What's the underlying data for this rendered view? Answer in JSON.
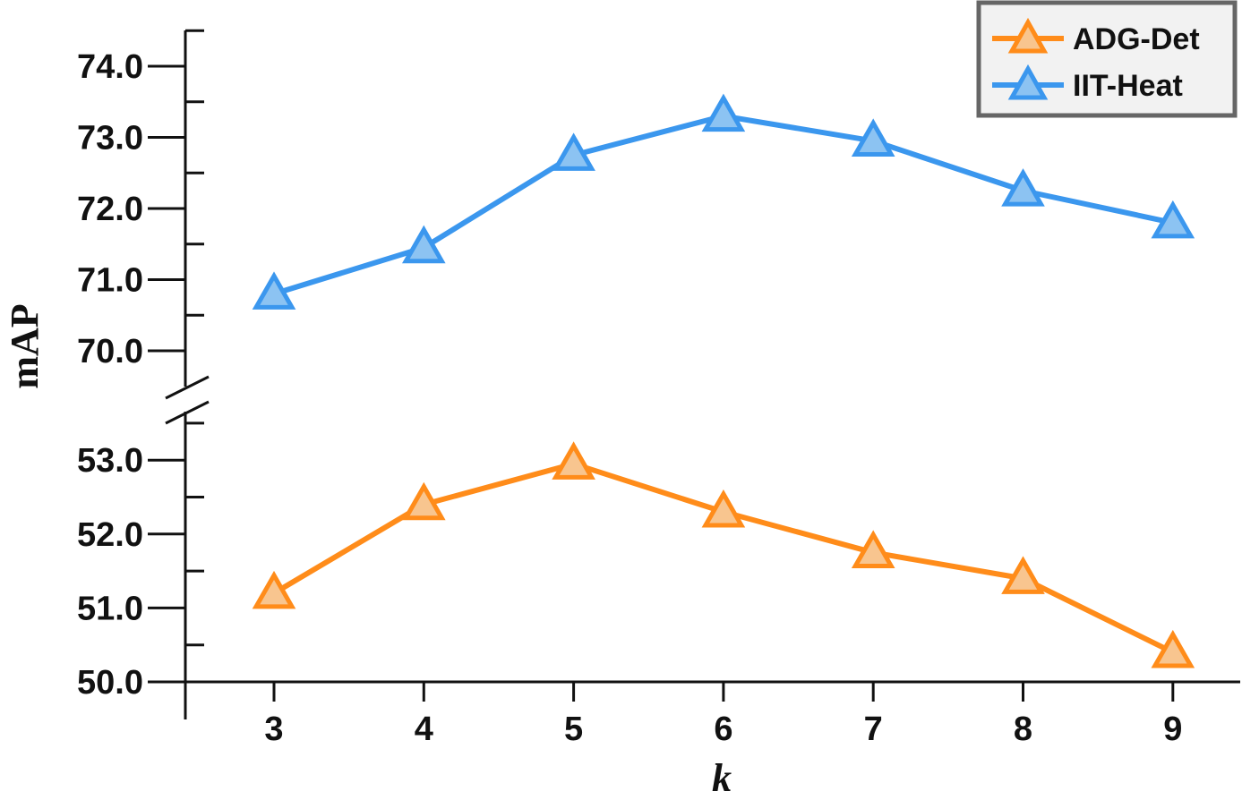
{
  "chart_data": {
    "type": "line",
    "x": [
      3,
      4,
      5,
      6,
      7,
      8,
      9
    ],
    "x_ticks": [
      "3",
      "4",
      "5",
      "6",
      "7",
      "8",
      "9"
    ],
    "xlabel": "k",
    "ylabel": "mAP",
    "broken_axis": true,
    "upper_segment": {
      "ylim": [
        69.5,
        74.5
      ],
      "ticks": [
        "70.0",
        "71.0",
        "72.0",
        "73.0",
        "74.0"
      ]
    },
    "lower_segment": {
      "ylim": [
        50.0,
        53.0
      ],
      "ticks": [
        "50.0",
        "51.0",
        "52.0",
        "53.0"
      ]
    },
    "series": [
      {
        "name": "ADG-Det",
        "color": "#ff8c1a",
        "fill": "#f8c58f",
        "marker": "triangle",
        "values": [
          51.2,
          52.4,
          52.95,
          52.3,
          51.75,
          51.4,
          50.4
        ]
      },
      {
        "name": "IIT-Heat",
        "color": "#3b97ee",
        "fill": "#8cc3f2",
        "marker": "triangle",
        "values": [
          70.8,
          71.45,
          72.75,
          73.3,
          72.95,
          72.25,
          71.8
        ]
      }
    ],
    "legend_position": "top-right",
    "grid": false
  }
}
